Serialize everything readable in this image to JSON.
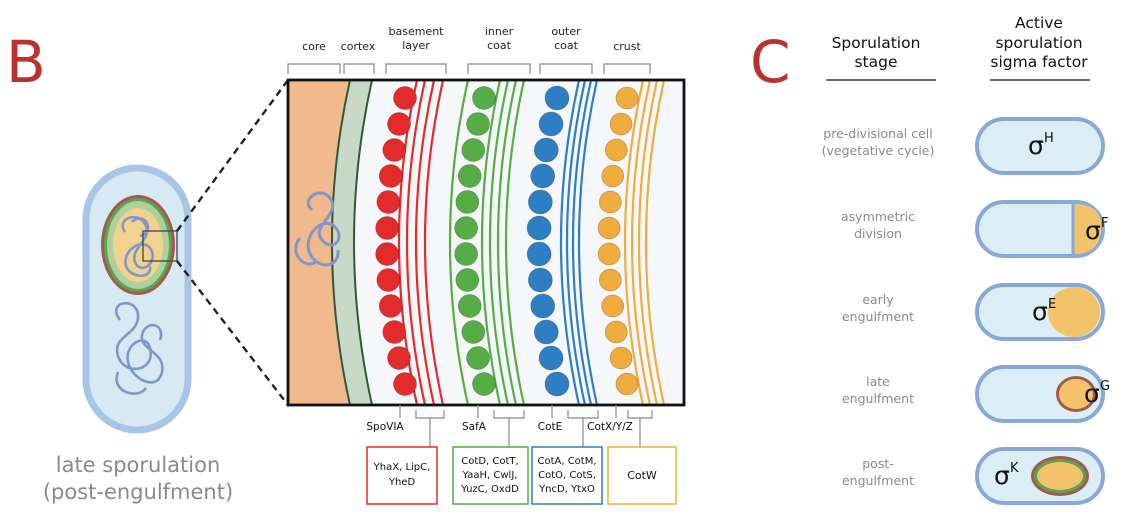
{
  "panels": {
    "b": "B",
    "c": "C"
  },
  "cell_caption": [
    "late sporulation",
    "(post-engulfment)"
  ],
  "layers": {
    "core": "core",
    "cortex": "cortex",
    "basement": [
      "basement",
      "layer"
    ],
    "inner": [
      "inner",
      "coat"
    ],
    "outer": [
      "outer",
      "coat"
    ],
    "crust": "crust"
  },
  "genes": {
    "spovia": "SpoVIA",
    "safa": "SafA",
    "cote": "CotE",
    "cotxyz": "CotX/Y/Z"
  },
  "boxes": {
    "red": [
      "YhaX, LipC,",
      "YheD"
    ],
    "green": [
      "CotD, CotT,",
      "YaaH, CwlJ,",
      "YuzC, OxdD"
    ],
    "blue": [
      "CotA, CotM,",
      "CotO, CotS,",
      "YncD, YtxO"
    ],
    "orange": [
      "CotW"
    ]
  },
  "table": {
    "col1": [
      "Sporulation",
      "stage"
    ],
    "col2": [
      "Active",
      "sporulation",
      "sigma factor"
    ],
    "rows": [
      {
        "stage": [
          "pre-divisional cell",
          "(vegetative cycle)"
        ],
        "sigma": "σ",
        "sup": "H"
      },
      {
        "stage": [
          "asymmetric",
          "division"
        ],
        "sigma": "σ",
        "sup": "F"
      },
      {
        "stage": [
          "early",
          "engulfment"
        ],
        "sigma": "σ",
        "sup": "E"
      },
      {
        "stage": [
          "late",
          "engulfment"
        ],
        "sigma": "σ",
        "sup": "G"
      },
      {
        "stage": [
          "post-",
          "engulfment"
        ],
        "sigma": "σ",
        "sup": "K"
      }
    ]
  },
  "colors": {
    "panel_label": "#b8322e",
    "core": "#f2b98e",
    "cortex": "#c9d9c8",
    "red": "#e42b2b",
    "green": "#57ad45",
    "blue": "#2e7ec4",
    "orange": "#f0ac3c",
    "cell_fill": "#dbeef5",
    "cell_edge": "#8aa8d6"
  }
}
